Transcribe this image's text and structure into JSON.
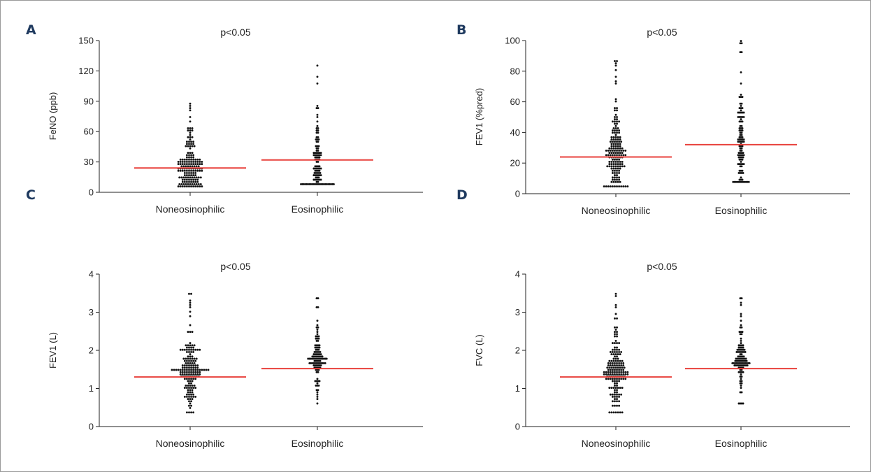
{
  "chart_data": [
    {
      "type": "scatter",
      "panel": "A",
      "annotation": "p<0.05",
      "ylabel": "FeNO (ppb)",
      "categories": [
        "Noneosinophilic",
        "Eosinophilic"
      ],
      "yticks": [
        0,
        30,
        60,
        90,
        120,
        150
      ],
      "ylim": [
        0,
        150
      ],
      "grid": false,
      "median_color": "#e8413c",
      "series": [
        {
          "category": "Noneosinophilic",
          "median": 24,
          "max": 87,
          "min": 5,
          "mode": 17,
          "spread": 0.9
        },
        {
          "category": "Eosinophilic",
          "median": 32,
          "max": 126,
          "min": 8,
          "mode": 18,
          "spread": 0.6
        }
      ]
    },
    {
      "type": "scatter",
      "panel": "B",
      "annotation": "p<0.05",
      "ylabel": "FEV1 (%pred)",
      "categories": [
        "Noneosinophilic",
        "Eosinophilic"
      ],
      "yticks": [
        0,
        20,
        40,
        60,
        80,
        100
      ],
      "ylim": [
        0,
        100
      ],
      "grid": false,
      "median_color": "#e8413c",
      "series": [
        {
          "category": "Noneosinophilic",
          "median": 24,
          "max": 87,
          "min": 5,
          "mode": 17,
          "spread": 0.9
        },
        {
          "category": "Eosinophilic",
          "median": 32,
          "max": 100,
          "min": 8,
          "mode": 18,
          "spread": 0.6
        }
      ]
    },
    {
      "type": "scatter",
      "panel": "C",
      "annotation": "p<0.05",
      "ylabel": "FEV1 (L)",
      "categories": [
        "Noneosinophilic",
        "Eosinophilic"
      ],
      "yticks": [
        0,
        1,
        2,
        3,
        4
      ],
      "ylim": [
        0,
        4
      ],
      "grid": false,
      "median_color": "#e8413c",
      "series": [
        {
          "category": "Noneosinophilic",
          "median": 1.3,
          "max": 3.5,
          "min": 0.4,
          "mode": 1.2,
          "spread": 0.9
        },
        {
          "category": "Eosinophilic",
          "median": 1.52,
          "max": 3.38,
          "min": 0.6,
          "mode": 1.6,
          "spread": 0.6
        }
      ]
    },
    {
      "type": "scatter",
      "panel": "D",
      "annotation": "p<0.05",
      "ylabel": "FVC (L)",
      "categories": [
        "Noneosinophilic",
        "Eosinophilic"
      ],
      "yticks": [
        0,
        1,
        2,
        3,
        4
      ],
      "ylim": [
        0,
        4
      ],
      "grid": false,
      "median_color": "#e8413c",
      "series": [
        {
          "category": "Noneosinophilic",
          "median": 1.3,
          "max": 3.5,
          "min": 0.4,
          "mode": 1.2,
          "spread": 0.9
        },
        {
          "category": "Eosinophilic",
          "median": 1.52,
          "max": 3.38,
          "min": 0.6,
          "mode": 1.6,
          "spread": 0.6
        }
      ]
    }
  ]
}
